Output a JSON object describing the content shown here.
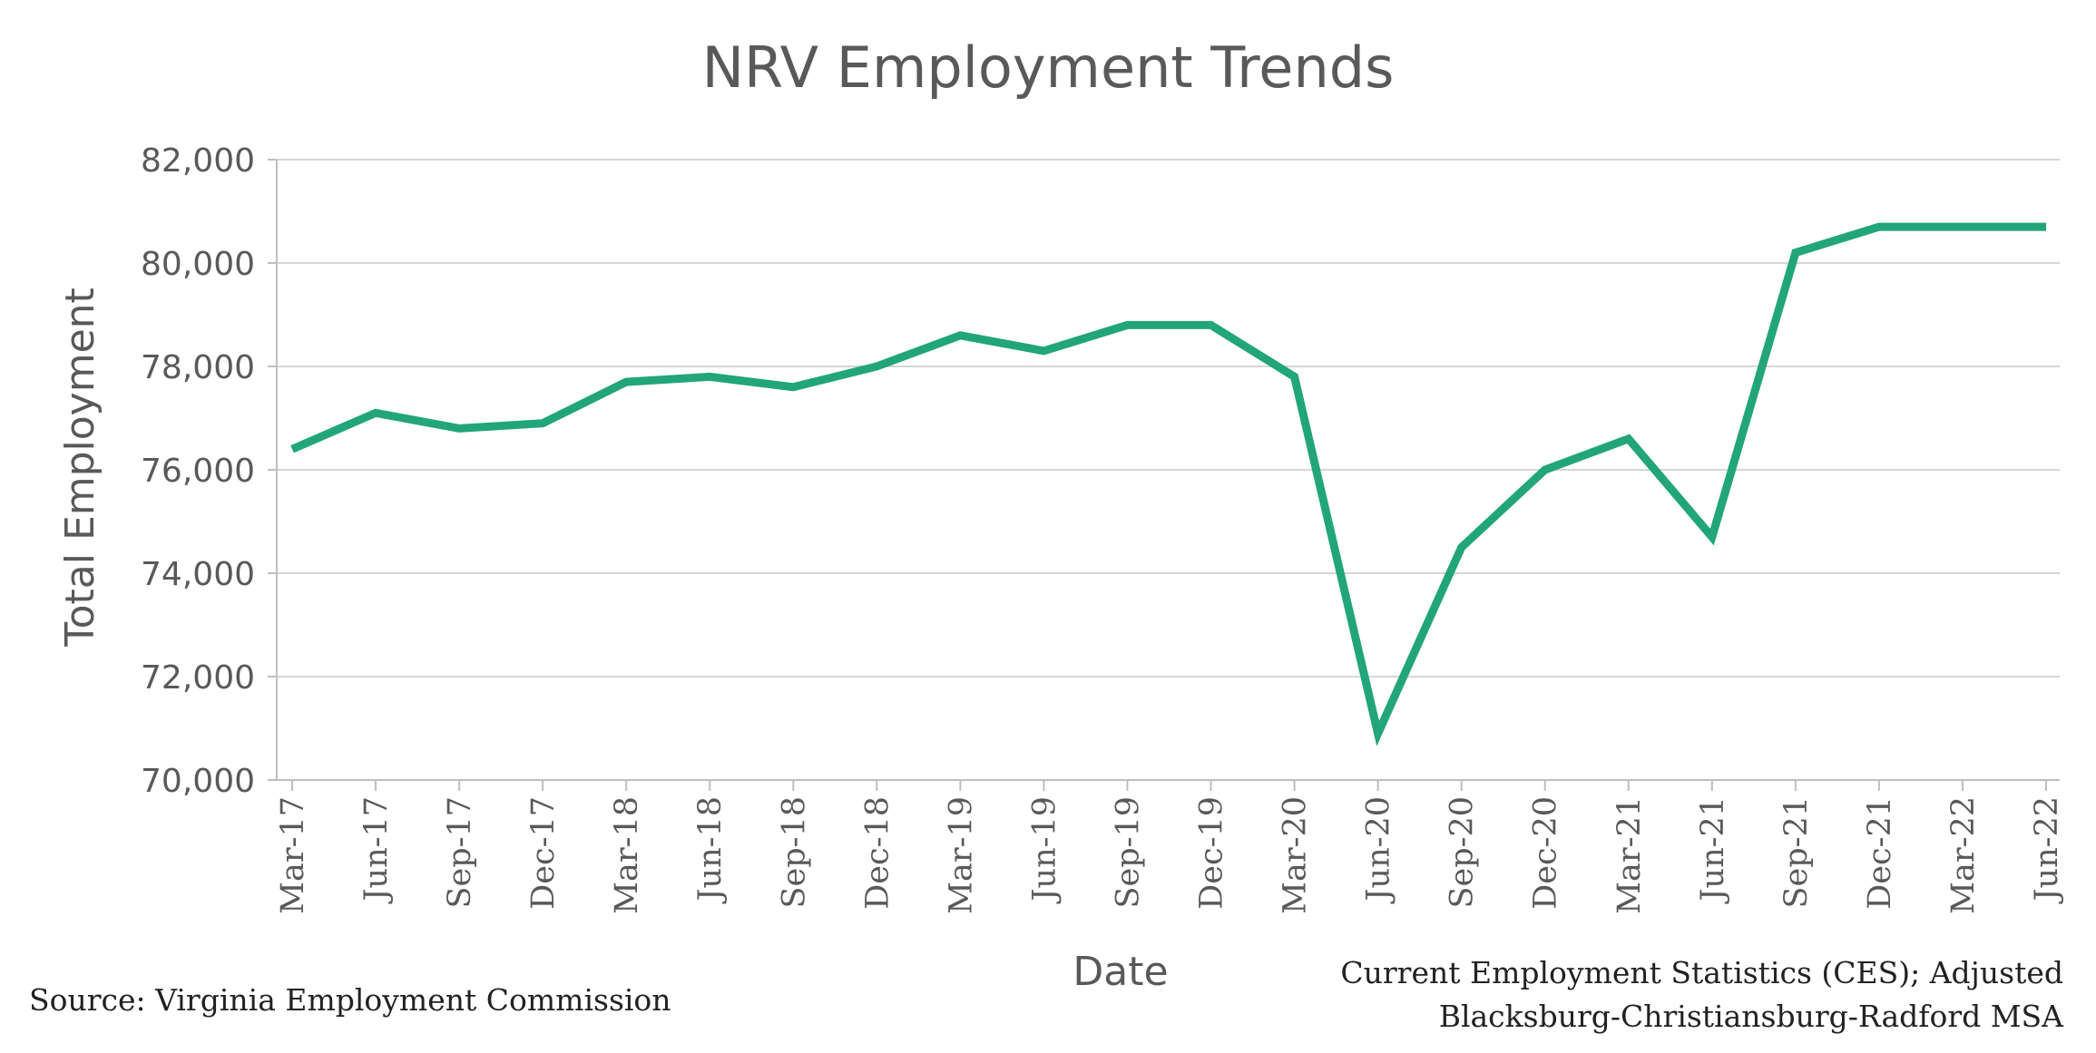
{
  "chart_data": {
    "type": "line",
    "title": "NRV Employment Trends",
    "xlabel": "Date",
    "ylabel": "Total Employment",
    "categories": [
      "Mar-17",
      "Jun-17",
      "Sep-17",
      "Dec-17",
      "Mar-18",
      "Jun-18",
      "Sep-18",
      "Dec-18",
      "Mar-19",
      "Jun-19",
      "Sep-19",
      "Dec-19",
      "Mar-20",
      "Jun-20",
      "Sep-20",
      "Dec-20",
      "Mar-21",
      "Jun-21",
      "Sep-21",
      "Dec-21",
      "Mar-22",
      "Jun-22"
    ],
    "series": [
      {
        "name": "Total Employment",
        "color": "#22a57a",
        "values": [
          76400,
          77100,
          76800,
          76900,
          77700,
          77800,
          77600,
          78000,
          78600,
          78300,
          78800,
          78800,
          77800,
          70900,
          74500,
          76000,
          76600,
          74700,
          80200,
          80700,
          80700,
          80700
        ]
      }
    ],
    "ylim": [
      70000,
      82000
    ],
    "yticks": [
      70000,
      72000,
      74000,
      76000,
      78000,
      80000,
      82000
    ],
    "ytick_labels": [
      "70,000",
      "72,000",
      "74,000",
      "76,000",
      "78,000",
      "80,000",
      "82,000"
    ],
    "grid": true,
    "legend": "none"
  },
  "notes": {
    "source": "Source: Virginia Employment Commission",
    "dataset_line1": "Current Employment Statistics (CES); Adjusted",
    "dataset_line2": "Blacksburg-Christiansburg-Radford MSA"
  }
}
